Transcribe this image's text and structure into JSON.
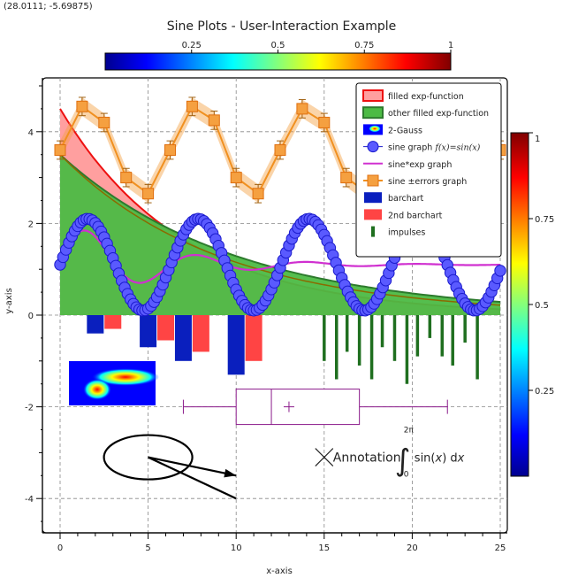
{
  "coord_readout": "(28.0111; -5.69875)",
  "chart_data": {
    "type": "line",
    "title": "Sine Plots - User-Interaction Example",
    "xlabel": "x-axis",
    "ylabel": "y-axis",
    "xlim": [
      -0.6,
      25.6
    ],
    "ylim": [
      -4.8,
      5.2
    ],
    "x_ticks": [
      0,
      5,
      10,
      15,
      20,
      25
    ],
    "y_ticks": [
      -4,
      -2,
      0,
      2,
      4
    ],
    "grid": true,
    "legend_position": "top-right",
    "legend": [
      "filled exp-function",
      "other filled exp-function",
      "2-Gauss",
      "sine graph",
      "sine*exp graph",
      "sine ±errors graph",
      "barchart",
      "2nd barchart",
      "impulses"
    ],
    "top_colorbar": {
      "ticks": [
        "0.25",
        "0.5",
        "0.75",
        "1"
      ]
    },
    "right_colorbar": {
      "ticks": [
        "1",
        "0.75",
        "0.5",
        "0.25"
      ]
    },
    "colors": {
      "fill1": "#ff9f9f",
      "line1": "#ee1111",
      "fill2": "#4cbb44",
      "sine": "#5a5aff",
      "sine_edge": "#1a1acc",
      "sinexp": "#d030d0",
      "errors": "#f5a040",
      "bar1": "#0a1fbe",
      "bar2": "#ff4444",
      "impulse": "#1f6f1f",
      "box": "#8a1a8a"
    },
    "series": [
      {
        "name": "filled exp-function",
        "type": "area",
        "fn": "4.5*exp(-x/7)"
      },
      {
        "name": "other filled exp-function",
        "type": "area",
        "fn": "3.5*exp(-x/10)"
      },
      {
        "name": "sine graph",
        "type": "line",
        "x_range": [
          0,
          25
        ],
        "fn": "sin(x)+1.1"
      },
      {
        "name": "sine*exp graph",
        "type": "line",
        "x_range": [
          0,
          25
        ],
        "fn": "sin(x)*exp(-x/5)+1.1"
      },
      {
        "name": "sine ±errors graph",
        "type": "line",
        "x": [
          0,
          1.25,
          2.5,
          3.75,
          5,
          6.25,
          7.5,
          8.75,
          10,
          11.25,
          12.5,
          13.75,
          15,
          16.25,
          17.5,
          18.75,
          20,
          21.25,
          22.5,
          23.75,
          25
        ],
        "y": [
          3.6,
          4.55,
          4.2,
          3.0,
          2.65,
          3.6,
          4.55,
          4.25,
          3.0,
          2.65,
          3.6,
          4.5,
          4.2,
          3.0,
          2.65,
          3.6,
          4.5,
          4.2,
          3.0,
          2.65,
          3.6
        ],
        "error": 0.2
      },
      {
        "name": "barchart",
        "type": "bar",
        "x": [
          2,
          5,
          7,
          10
        ],
        "y": [
          -0.4,
          -0.7,
          -1.0,
          -1.3
        ]
      },
      {
        "name": "2nd barchart",
        "type": "bar",
        "x": [
          3,
          6,
          8,
          11
        ],
        "y": [
          -0.3,
          -0.55,
          -0.8,
          -1.0
        ]
      },
      {
        "name": "impulses",
        "type": "impulse",
        "x": [
          15,
          15.7,
          16.3,
          17,
          17.7,
          18.3,
          19,
          19.7,
          20.3,
          21,
          21.7,
          22.3,
          23,
          23.7
        ],
        "y": [
          -1.0,
          -1.4,
          -0.8,
          -1.1,
          -1.4,
          -0.7,
          -1.0,
          -1.5,
          -0.9,
          -0.5,
          -0.9,
          -1.1,
          -0.6,
          -1.4
        ]
      }
    ],
    "boxplot": {
      "whisker_low": 7,
      "q1": 10,
      "median": 12,
      "mean": 13,
      "q3": 17,
      "whisker_high": 22,
      "y": -2
    },
    "annotation": {
      "text": "Annotation",
      "formula_pre": "sin(",
      "formula_var": "x",
      "formula_post": ") d",
      "integral_upper": "2π",
      "integral_lower": "0",
      "x": 15,
      "y": -3.1
    },
    "ellipse_center": [
      5,
      -3.1
    ],
    "lines": [
      [
        [
          5,
          -3.1
        ],
        [
          10,
          -3.5
        ]
      ],
      [
        [
          5,
          -3.1
        ],
        [
          10,
          -4.0
        ]
      ]
    ]
  }
}
